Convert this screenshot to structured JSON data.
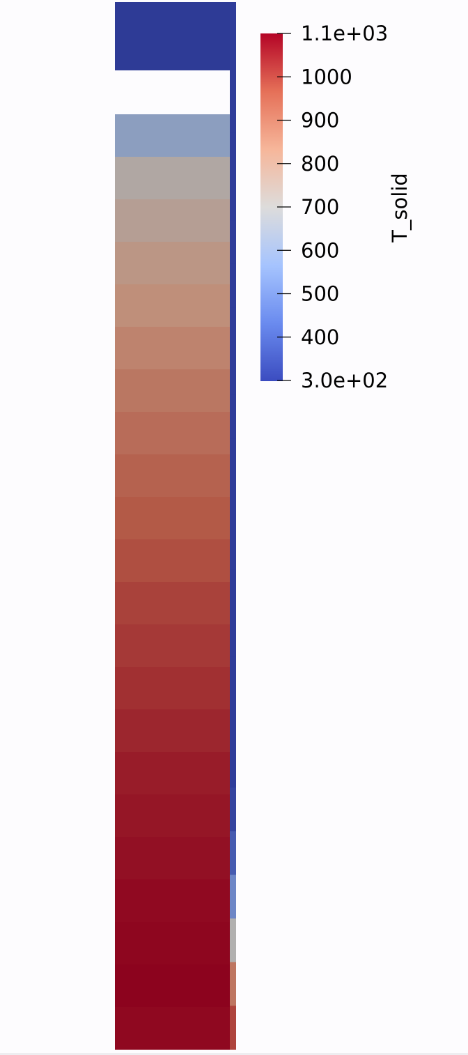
{
  "colorbar": {
    "title": "T_solid",
    "range": [
      300,
      1100
    ],
    "max_label": "1.1e+03",
    "min_label": "3.0e+02",
    "ticks": [
      {
        "value": 1000,
        "label": "1000"
      },
      {
        "value": 900,
        "label": "900"
      },
      {
        "value": 800,
        "label": "800"
      },
      {
        "value": 700,
        "label": "700"
      },
      {
        "value": 600,
        "label": "600"
      },
      {
        "value": 500,
        "label": "500"
      },
      {
        "value": 400,
        "label": "400"
      }
    ],
    "colormap": "coolwarm",
    "color_stops": [
      "#3b4cc0",
      "#6a8bef",
      "#a6c4fe",
      "#dddcdb",
      "#f6b69a",
      "#e57058",
      "#b40426"
    ]
  },
  "field": {
    "cap_temperature": 300,
    "column_band_temperatures": [
      600,
      720,
      760,
      800,
      830,
      860,
      890,
      915,
      940,
      960,
      980,
      1000,
      1015,
      1030,
      1045,
      1060,
      1070,
      1080,
      1090,
      1095,
      1100,
      1092
    ],
    "right_strip_temperatures": [
      300,
      300,
      300,
      300,
      300,
      300,
      300,
      300,
      300,
      300,
      300,
      300,
      300,
      300,
      300,
      300,
      320,
      380,
      500,
      700,
      900,
      1000
    ]
  },
  "chart_data": {
    "type": "heatmap",
    "title": "",
    "legend_title": "T_solid",
    "vmin": 300,
    "vmax": 1100,
    "tick_labels": [
      "3.0e+02",
      "400",
      "500",
      "600",
      "700",
      "800",
      "900",
      "1000",
      "1.1e+03"
    ]
  }
}
